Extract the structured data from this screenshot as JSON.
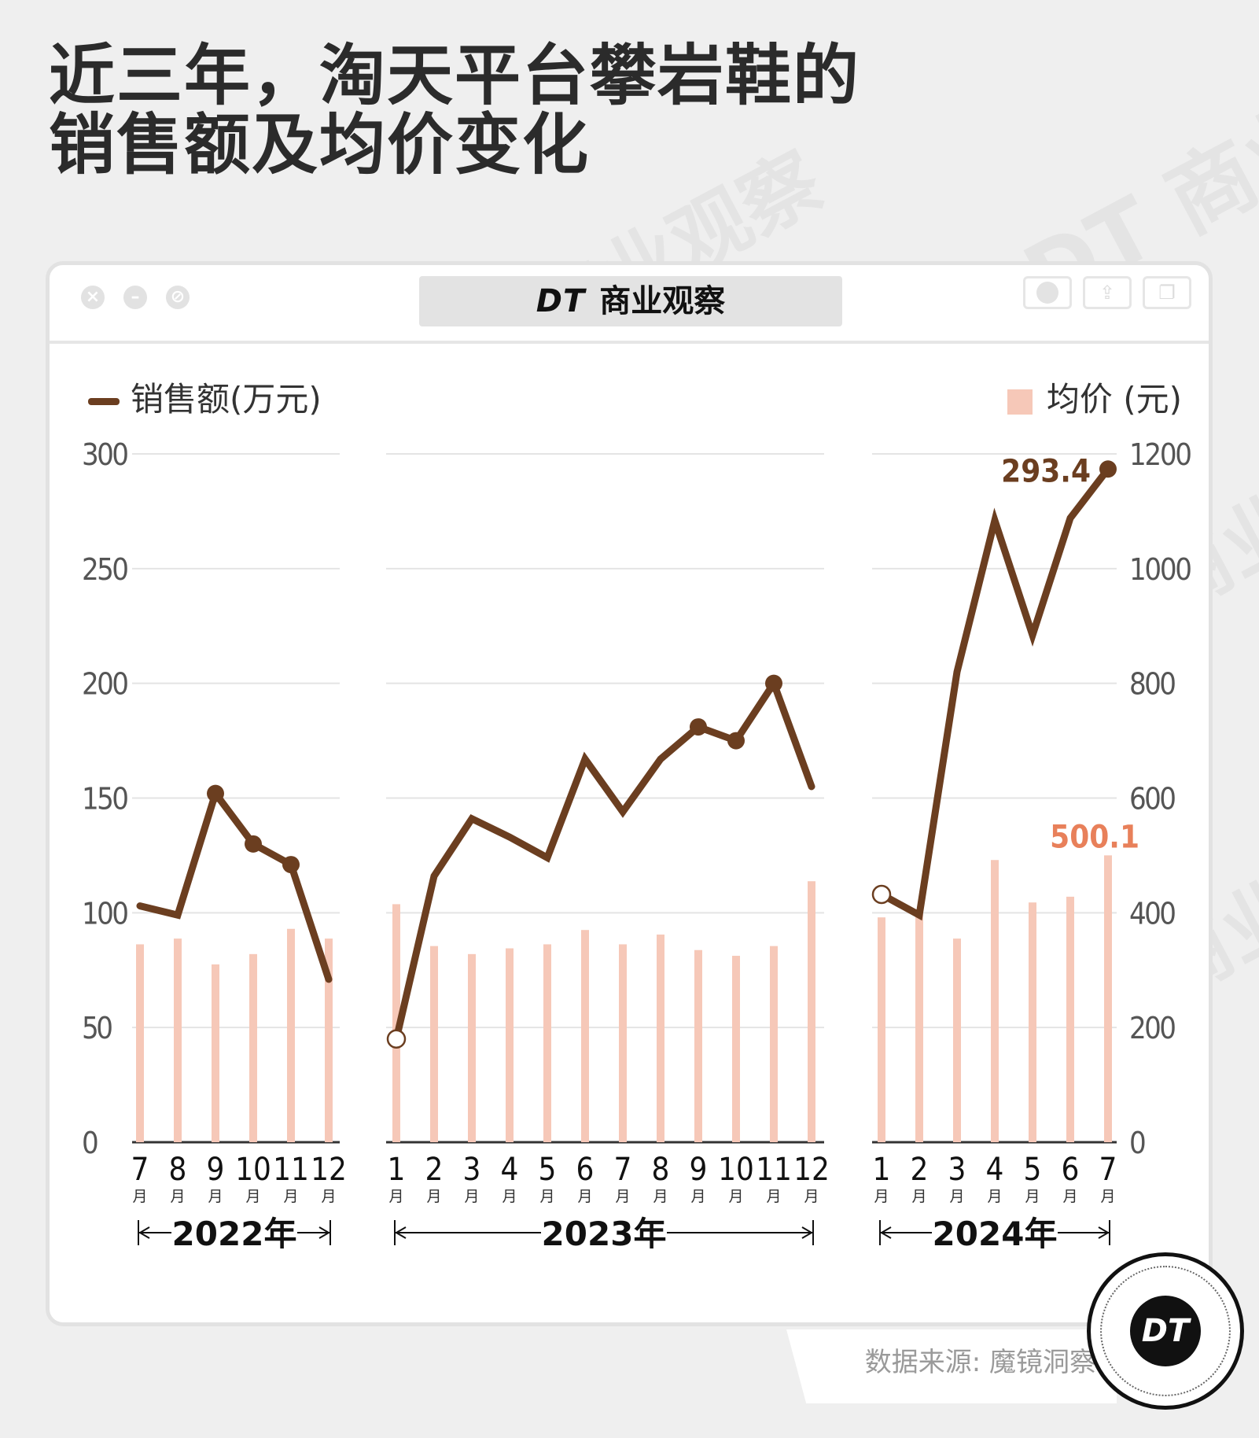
{
  "title": {
    "line1": "近三年，淘天平台攀岩鞋的",
    "line2": "销售额及均价变化"
  },
  "window": {
    "brand_logo": "DT",
    "brand_name": "商业观察",
    "controls": [
      "close-icon",
      "minimize-icon",
      "block-icon"
    ],
    "buttons": [
      "record-icon",
      "share-icon",
      "copy-icon"
    ]
  },
  "legend": {
    "sales": "销售额(万元)",
    "price": "均价 (元)"
  },
  "source": "数据来源: 魔镜洞察",
  "badge": "DT",
  "watermark": "DT 商业观察",
  "colors": {
    "line": "#6b3e20",
    "bar": "#f6c8b8",
    "price_label": "#e8805a",
    "grid": "#e4e4e4"
  },
  "chart_data": {
    "type": "bar+line",
    "y_left": {
      "label": "销售额(万元)",
      "ticks": [
        "0",
        "50",
        "100",
        "150",
        "200",
        "250",
        "300"
      ],
      "range": [
        0,
        300
      ]
    },
    "y_right": {
      "label": "均价 (元)",
      "ticks": [
        "0",
        "200",
        "400",
        "600",
        "800",
        "1000",
        "1200"
      ],
      "range": [
        0,
        1200
      ]
    },
    "month_unit": "月",
    "grid": true,
    "legend_position": "top",
    "groups": [
      {
        "year": "2022年",
        "months": [
          "7",
          "8",
          "9",
          "10",
          "11",
          "12"
        ],
        "price": [
          345,
          355,
          310,
          328,
          372,
          355
        ],
        "sales": [
          103,
          99,
          152,
          130,
          121,
          71
        ],
        "markers": [
          "none",
          "none",
          "filled",
          "filled",
          "filled",
          "none"
        ]
      },
      {
        "year": "2023年",
        "months": [
          "1",
          "2",
          "3",
          "4",
          "5",
          "6",
          "7",
          "8",
          "9",
          "10",
          "11",
          "12"
        ],
        "price": [
          415,
          342,
          328,
          338,
          345,
          370,
          345,
          362,
          335,
          325,
          342,
          455
        ],
        "sales": [
          45,
          116,
          141,
          133,
          124,
          167,
          144,
          167,
          181,
          175,
          200,
          155
        ],
        "markers": [
          "hollow",
          "none",
          "none",
          "none",
          "none",
          "none",
          "none",
          "none",
          "filled",
          "filled",
          "filled",
          "none"
        ]
      },
      {
        "year": "2024年",
        "months": [
          "1",
          "2",
          "3",
          "4",
          "5",
          "6",
          "7"
        ],
        "price": [
          392,
          398,
          355,
          492,
          418,
          428,
          500.1
        ],
        "sales": [
          108,
          99,
          205,
          271,
          221,
          272,
          293.4
        ],
        "markers": [
          "hollow",
          "none",
          "none",
          "none",
          "none",
          "none",
          "filled"
        ]
      }
    ],
    "annotations": [
      {
        "text": "293.4",
        "series": "sales",
        "group": 2,
        "index": 6
      },
      {
        "text": "500.1",
        "series": "price",
        "group": 2,
        "index": 6
      }
    ]
  }
}
